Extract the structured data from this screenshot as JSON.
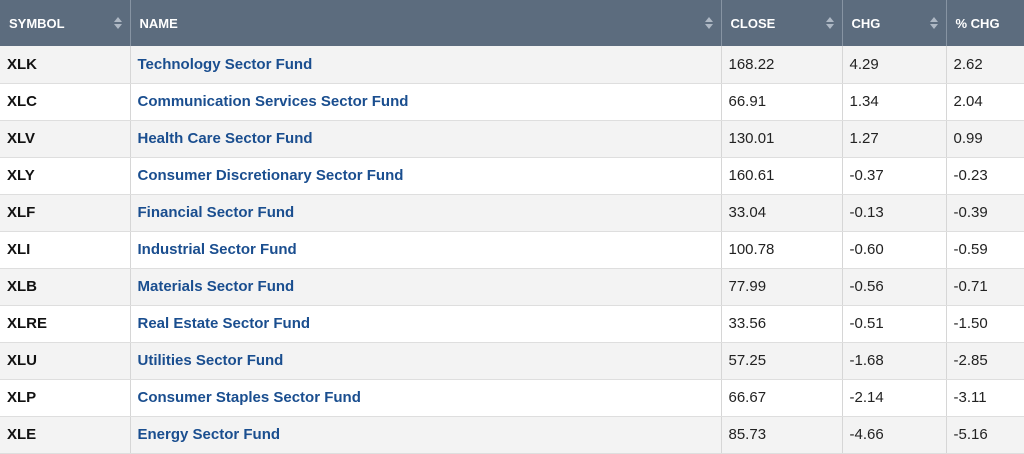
{
  "columns": {
    "symbol": "SYMBOL",
    "name": "NAME",
    "close": "CLOSE",
    "chg": "CHG",
    "pct_chg": "% CHG"
  },
  "colors": {
    "header_bg": "#5c6c7e",
    "link": "#1a4e8f",
    "row_alt": "#f3f3f3"
  },
  "rows": [
    {
      "symbol": "XLK",
      "name": "Technology Sector Fund",
      "close": "168.22",
      "chg": "4.29",
      "pct": "2.62"
    },
    {
      "symbol": "XLC",
      "name": "Communication Services Sector Fund",
      "close": "66.91",
      "chg": "1.34",
      "pct": "2.04"
    },
    {
      "symbol": "XLV",
      "name": "Health Care Sector Fund",
      "close": "130.01",
      "chg": "1.27",
      "pct": "0.99"
    },
    {
      "symbol": "XLY",
      "name": "Consumer Discretionary Sector Fund",
      "close": "160.61",
      "chg": "-0.37",
      "pct": "-0.23"
    },
    {
      "symbol": "XLF",
      "name": "Financial Sector Fund",
      "close": "33.04",
      "chg": "-0.13",
      "pct": "-0.39"
    },
    {
      "symbol": "XLI",
      "name": "Industrial Sector Fund",
      "close": "100.78",
      "chg": "-0.60",
      "pct": "-0.59"
    },
    {
      "symbol": "XLB",
      "name": "Materials Sector Fund",
      "close": "77.99",
      "chg": "-0.56",
      "pct": "-0.71"
    },
    {
      "symbol": "XLRE",
      "name": "Real Estate Sector Fund",
      "close": "33.56",
      "chg": "-0.51",
      "pct": "-1.50"
    },
    {
      "symbol": "XLU",
      "name": "Utilities Sector Fund",
      "close": "57.25",
      "chg": "-1.68",
      "pct": "-2.85"
    },
    {
      "symbol": "XLP",
      "name": "Consumer Staples Sector Fund",
      "close": "66.67",
      "chg": "-2.14",
      "pct": "-3.11"
    },
    {
      "symbol": "XLE",
      "name": "Energy Sector Fund",
      "close": "85.73",
      "chg": "-4.66",
      "pct": "-5.16"
    }
  ]
}
